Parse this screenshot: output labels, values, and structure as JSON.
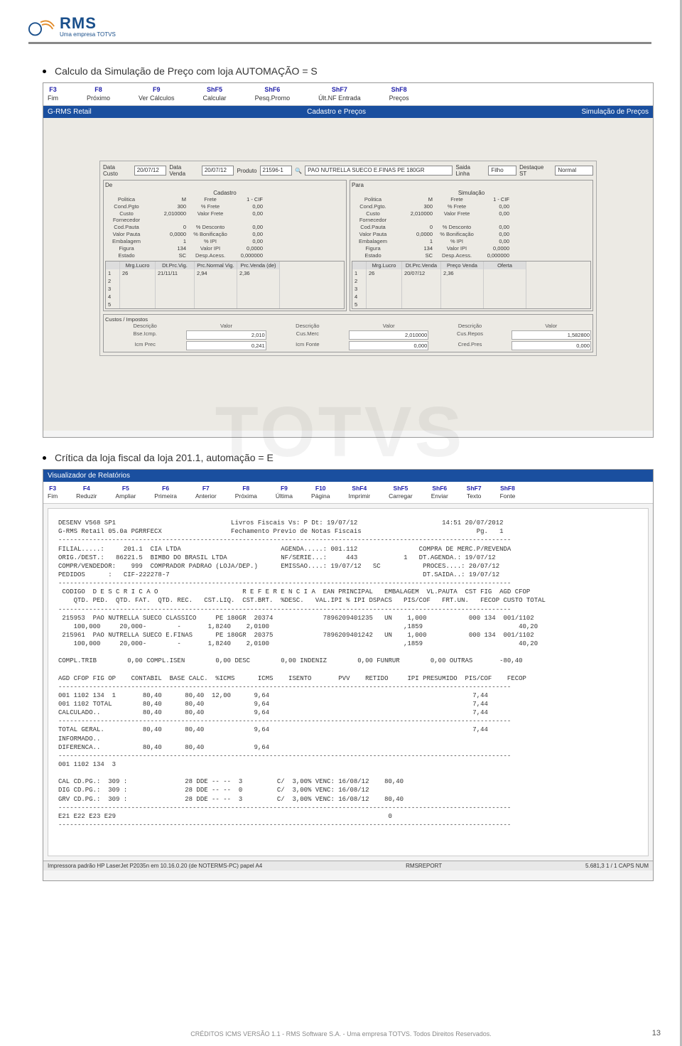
{
  "header": {
    "logo_text": "RMS",
    "logo_sub": "Uma empresa TOTVS"
  },
  "bullet1": "Calculo da Simulação de Preço com loja AUTOMAÇÃO = S",
  "bullet2": "Crítica da loja fiscal da loja 201.1, automação = E",
  "watermark": "TOTVS",
  "ss1": {
    "fkeys": [
      {
        "k": "F3",
        "l": "Fim"
      },
      {
        "k": "F8",
        "l": "Próximo"
      },
      {
        "k": "F9",
        "l": "Ver Cálculos"
      },
      {
        "k": "ShF5",
        "l": "Calcular"
      },
      {
        "k": "ShF6",
        "l": "Pesq.Promo"
      },
      {
        "k": "ShF7",
        "l": "Últ.NF Entrada"
      },
      {
        "k": "ShF8",
        "l": "Preços"
      }
    ],
    "title_left": "G-RMS Retail",
    "title_center": "Cadastro e Preços",
    "title_right": "Simulação de Preços",
    "top": {
      "data_custo_lbl": "Data Custo",
      "data_custo": "20/07/12",
      "data_venda_lbl": "Data Venda",
      "data_venda": "20/07/12",
      "produto_lbl": "Produto",
      "produto_cod": "21596-1",
      "produto_desc": "PAO NUTRELLA SUECO E.FINAS   PE 180GR",
      "saida_linha_lbl": "Saida Linha",
      "saida_linha": "Filho",
      "destaque_lbl": "Destaque ST",
      "destaque": "Normal"
    },
    "cadastro": {
      "title": "Cadastro",
      "rows": [
        [
          "Politica",
          "M",
          "Frete",
          "1 - CIF"
        ],
        [
          "Cond.Pgto",
          "300",
          "% Frete",
          "0,00"
        ],
        [
          "Custo Fornecedor",
          "2,010000",
          "Valor Frete",
          "0,00"
        ],
        [
          "Cod.Pauta",
          "0",
          "% Desconto",
          "0,00"
        ],
        [
          "Valor Pauta",
          "0,0000",
          "% Bonificação",
          "0,00"
        ],
        [
          "Embalagem",
          "1",
          "% IPI",
          "0,00"
        ],
        [
          "Figura",
          "134",
          "Valor IPI",
          "0,0000"
        ],
        [
          "Estado",
          "SC",
          "Desp.Acess.",
          "0,000000"
        ]
      ]
    },
    "simulacao": {
      "title": "Simulação",
      "rows": [
        [
          "Politica",
          "M",
          "Frete",
          "1 - CIF"
        ],
        [
          "Cond.Pgto.",
          "300",
          "% Frete",
          "0,00"
        ],
        [
          "Custo Fornecedor",
          "2,010000",
          "Valor Frete",
          "0,00"
        ],
        [
          "Cod.Pauta",
          "0",
          "% Desconto",
          "0,00"
        ],
        [
          "Valor Pauta",
          "0,0000",
          "% Bonificação",
          "0,00"
        ],
        [
          "Embalagem",
          "1",
          "% IPI",
          "0,00"
        ],
        [
          "Figura",
          "134",
          "Valor IPI",
          "0,0000"
        ],
        [
          "Estado",
          "SC",
          "Desp.Acess.",
          "0,000000"
        ]
      ]
    },
    "price_left": {
      "headers": [
        "",
        "Mrg.Lucro",
        "Dt.Prc.Vig.",
        "Prc.Normal Vig.",
        "Prc.Venda (de)"
      ],
      "row": [
        "1",
        "26",
        "21/11/11",
        "2,94",
        "2,36"
      ]
    },
    "price_right": {
      "headers": [
        "",
        "Mrg.Lucro",
        "Dt.Prc.Venda",
        "Preço Venda",
        "Oferta"
      ],
      "row": [
        "1",
        "26",
        "20/07/12",
        "2,36",
        ""
      ]
    },
    "costs": {
      "title": "Custos / Impostos",
      "headers": [
        "Descrição",
        "Valor",
        "Descrição",
        "Valor",
        "Descrição",
        "Valor"
      ],
      "rows": [
        [
          "Bse.Icmp.",
          "2,010",
          "Cus.Merc",
          "2,010000",
          "Cus.Repos",
          "1,582800"
        ],
        [
          "Icm Prec",
          "0,241",
          "Icm Fonte",
          "0,000",
          "Cred.Pres",
          "0,000"
        ]
      ]
    }
  },
  "ss2": {
    "title": "Visualizador de Relatórios",
    "fkeys": [
      {
        "k": "F3",
        "l": "Fim"
      },
      {
        "k": "F4",
        "l": "Reduzir"
      },
      {
        "k": "F5",
        "l": "Ampliar"
      },
      {
        "k": "F6",
        "l": "Primeira"
      },
      {
        "k": "F7",
        "l": "Anterior"
      },
      {
        "k": "F8",
        "l": "Próxima"
      },
      {
        "k": "F9",
        "l": "Última"
      },
      {
        "k": "F10",
        "l": "Página"
      },
      {
        "k": "ShF4",
        "l": "Imprimir"
      },
      {
        "k": "ShF5",
        "l": "Carregar"
      },
      {
        "k": "ShF6",
        "l": "Enviar"
      },
      {
        "k": "ShF7",
        "l": "Texto"
      },
      {
        "k": "ShF8",
        "l": "Fonte"
      }
    ],
    "report": "DESENV V568 SP1                              Livros Fiscais Vs: P Dt: 19/07/12                      14:51 20/07/2012\nG-RMS Retail 05.0a PGRRFECX                  Fechamento Previo de Notas Fiscais                              Pg.   1\n----------------------------------------------------------------------------------------------------------------------\nFILIAL.....:     201.1  CIA LTDA                          AGENDA.....: 001.112                COMPRA DE MERC.P/REVENDA\nORIG./DEST.:   86221.5  BIMBO DO BRASIL LTDA              NF/SERIE...:     443            1   DT.AGENDA.: 19/07/12\nCOMPR/VENDEDOR:    999  COMPRADOR PADRAO (LOJA/DEP.)      EMISSAO....: 19/07/12   SC           PROCES....: 20/07/12\nPEDIDOS      :   CIF-222278-7                                                                  DT.SAIDA..: 19/07/12\n----------------------------------------------------------------------------------------------------------------------\n CODIGO  D E S C R I C A O                      R E F E R E N C I A  EAN PRINCIPAL   EMBALAGEM  VL.PAUTA  CST FIG  AGD CFOP\n    QTD. PED.  QTD. FAT.  QTD. REC.   CST.LIQ.  CST.BRT.  %DESC.   VAL.IPI % IPI DSPACS   PIS/COF   FRT.UN.   FECOP CUSTO TOTAL\n----------------------------------------------------------------------------------------------------------------------\n 215953  PAO NUTRELLA SUECO CLASSICO     PE 180GR  20374             7896209401235   UN    1,000           000 134  001/1102\n    100,000     20,000-        -       1,8240    2,0100                                   ,1859                         40,20\n 215961  PAO NUTRELLA SUECO E.FINAS      PE 180GR  20375             7896209401242   UN    1,000           000 134  001/1102\n    100,000     20,000-        -       1,8240    2,0100                                   ,1859                         40,20\n\nCOMPL.TRIB        0,00 COMPL.ISEN        0,00 DESC        0,00 INDENIZ        0,00 FUNRUR        0,00 OUTRAS       -80,40\n\nAGD CFOP FIG OP    CONTABIL  BASE CALC.  %ICMS      ICMS    ISENTO       PVV    RETIDO     IPI PRESUMIDO  PIS/COF    FECOP\n----------------------------------------------------------------------------------------------------------------------\n001 1102 134  1       80,40      80,40  12,00      9,64                                                     7,44\n001 1102 TOTAL        80,40      80,40             9,64                                                     7,44\nCALCULADO..           80,40      80,40             9,64                                                     7,44\n----------------------------------------------------------------------------------------------------------------------\nTOTAL GERAL.          80,40      80,40             9,64                                                     7,44\nINFORMADO..\nDIFERENCA..           80,40      80,40             9,64\n----------------------------------------------------------------------------------------------------------------------\n001 1102 134  3\n\nCAL CD.PG.:  309 :               28 DDE -- --  3         C/  3,00% VENC: 16/08/12    80,40\nDIG CD.PG.:  309 :               28 DDE -- --  0         C/  3,00% VENC: 16/08/12\nGRV CD.PG.:  309 :               28 DDE -- --  3         C/  3,00% VENC: 16/08/12    80,40\n----------------------------------------------------------------------------------------------------------------------\nE21 E22 E23 E29                                                                       0\n----------------------------------------------------------------------------------------------------------------------",
    "status_left": "Impressora padrão HP LaserJet P2035n em 10.16.0.20 (de NOTERMS-PC) papel A4",
    "status_mid": "RMSREPORT",
    "status_right": "5.681,3    1 / 1    CAPS  NUM"
  },
  "footer": "CRÉDITOS ICMS VERSÃO 1.1 - RMS Software S.A. - Uma empresa TOTVS. Todos Direitos Reservados.",
  "page_num": "13"
}
